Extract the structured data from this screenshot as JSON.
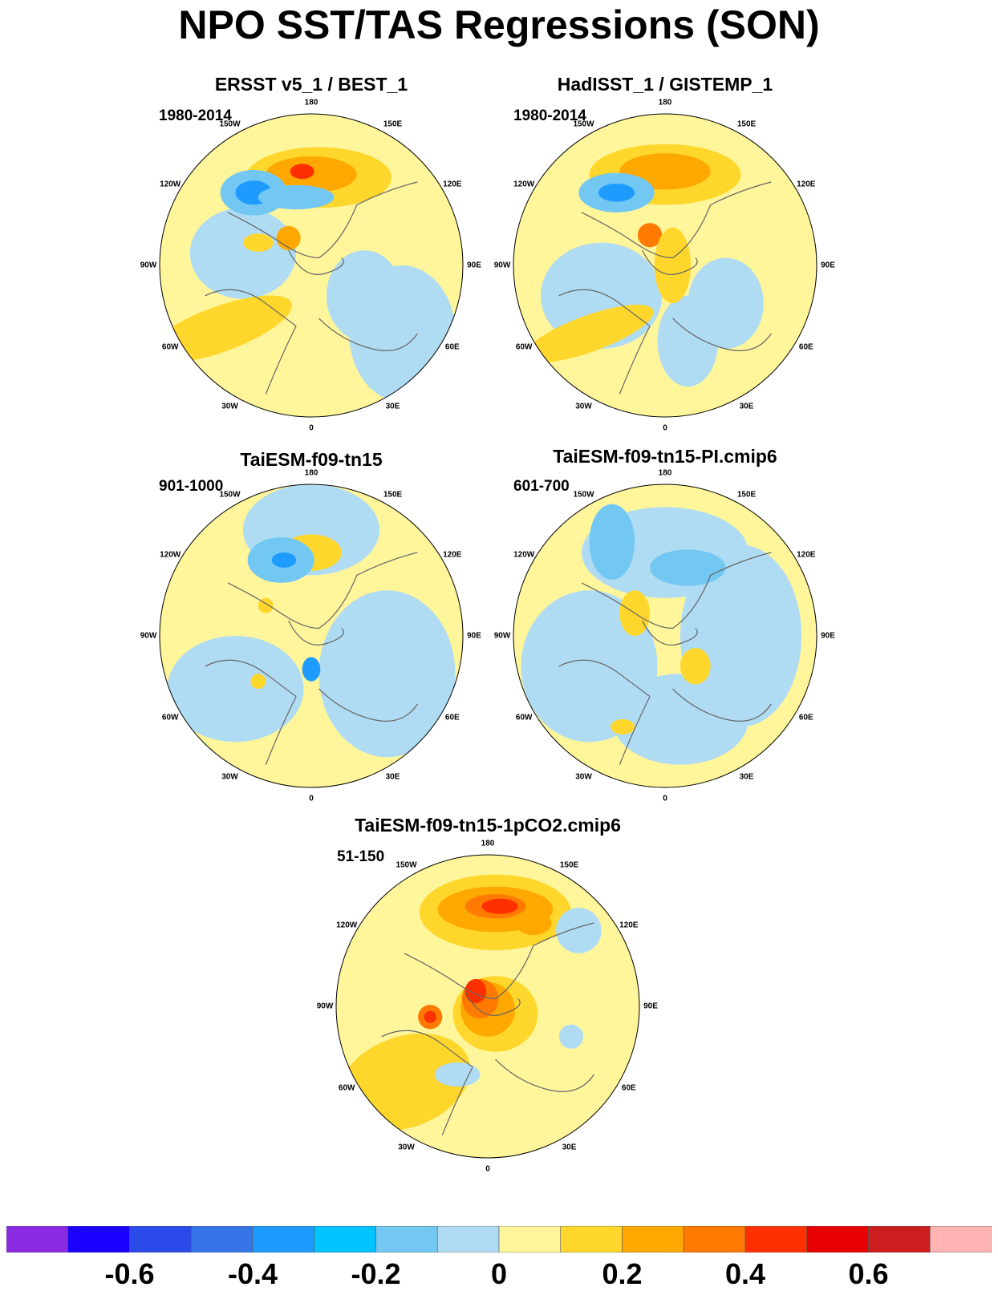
{
  "title": "NPO SST/TAS Regressions (SON)",
  "panels": [
    {
      "title": "ERSST v5_1 / BEST_1",
      "period": "1980-2014"
    },
    {
      "title": "HadISST_1 / GISTEMP_1",
      "period": "1980-2014"
    },
    {
      "title": "TaiESM-f09-tn15",
      "period": "901-1000"
    },
    {
      "title": "TaiESM-f09-tn15-PI.cmip6",
      "period": "601-700"
    },
    {
      "title": "TaiESM-f09-tn15-1pCO2.cmip6",
      "period": "51-150"
    }
  ],
  "longitude_labels": [
    "180",
    "150E",
    "120E",
    "90E",
    "60E",
    "30E",
    "0",
    "30W",
    "60W",
    "90W",
    "120W",
    "150W"
  ],
  "colorbar": {
    "colors": [
      "#8a2be2",
      "#1a00ff",
      "#2a4bea",
      "#3575e8",
      "#1e9bff",
      "#00c3ff",
      "#73c8f3",
      "#b0dcf3",
      "#fff59a",
      "#ffd62c",
      "#ffa800",
      "#ff7a00",
      "#ff3000",
      "#e60000",
      "#cc1e1e",
      "#ffb3b3"
    ],
    "tick_labels": [
      "-0.6",
      "-0.4",
      "-0.2",
      "0",
      "0.2",
      "0.4",
      "0.6"
    ],
    "tick_values": [
      -0.6,
      -0.4,
      -0.2,
      0,
      0.2,
      0.4,
      0.6
    ],
    "boundaries": [
      -0.7,
      -0.6,
      -0.5,
      -0.4,
      -0.3,
      -0.2,
      -0.1,
      0,
      0.1,
      0.2,
      0.3,
      0.4,
      0.5,
      0.6,
      0.7
    ]
  }
}
